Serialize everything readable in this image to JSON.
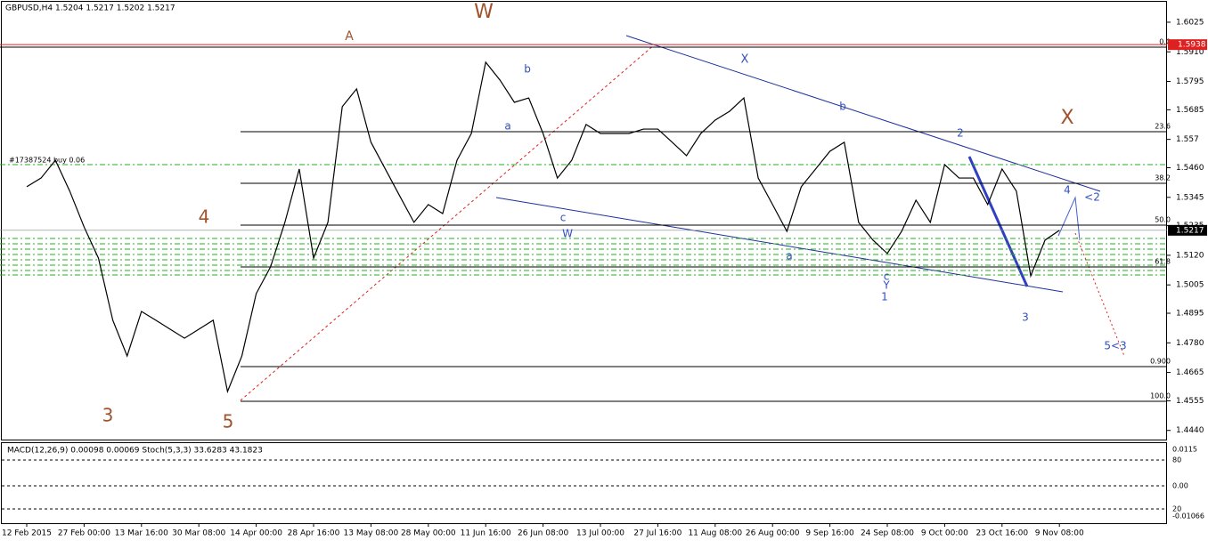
{
  "chart_data": {
    "type": "line",
    "title": "GBPUSD,H4  1.5204 1.5217 1.5202 1.5217",
    "categories": [
      "12 Feb 2015",
      null,
      null,
      null,
      "27 Feb 00:00",
      null,
      null,
      null,
      "13 Mar 16:00",
      null,
      null,
      null,
      "30 Mar 08:00",
      null,
      null,
      null,
      "14 Apr 00:00",
      null,
      null,
      null,
      "28 Apr 16:00",
      null,
      null,
      null,
      "13 May 08:00",
      null,
      null,
      null,
      "28 May 00:00",
      null,
      null,
      null,
      "11 Jun 16:00",
      null,
      null,
      null,
      "26 Jun 08:00",
      null,
      null,
      null,
      "13 Jul 00:00",
      null,
      null,
      null,
      "27 Jul 16:00",
      null,
      null,
      null,
      "11 Aug 08:00",
      null,
      null,
      null,
      "26 Aug 00:00",
      null,
      null,
      null,
      "9 Sep 16:00",
      null,
      null,
      null,
      "24 Sep 08:00",
      null,
      null,
      null,
      "9 Oct 00:00",
      null,
      null,
      null,
      "23 Oct 16:00",
      null,
      null,
      null,
      "9 Nov 08:00"
    ],
    "values": [
      1.5386,
      1.542,
      1.5489,
      1.5369,
      1.523,
      1.5109,
      1.4868,
      1.4729,
      1.4902,
      1.4868,
      1.4833,
      1.4798,
      1.4833,
      1.4868,
      1.4591,
      1.4729,
      1.4971,
      1.5075,
      1.5248,
      1.5455,
      1.5109,
      1.5248,
      1.5697,
      1.5766,
      1.5559,
      1.5455,
      1.5351,
      1.5248,
      1.5317,
      1.5282,
      1.5489,
      1.5593,
      1.587,
      1.58,
      1.5714,
      1.5731,
      1.5593,
      1.542,
      1.5489,
      1.5628,
      1.5593,
      1.5593,
      1.5593,
      1.561,
      1.561,
      1.5559,
      1.5507,
      1.5593,
      1.5645,
      1.5679,
      1.5731,
      1.542,
      1.5317,
      1.5213,
      1.5386,
      1.5455,
      1.5524,
      1.5559,
      1.5248,
      1.5179,
      1.5127,
      1.5213,
      1.5334,
      1.5248,
      1.5472,
      1.542,
      1.542,
      1.5317,
      1.5455,
      1.5369,
      1.504,
      1.5179,
      1.5217
    ],
    "color": "#000000",
    "ylim": [
      1.4401,
      1.6094
    ],
    "yticks": [
      1.6025,
      {
        "value": 1.591,
        "label": "1.5910"
      },
      1.5795,
      1.5685,
      1.557,
      {
        "value": 1.546,
        "label": "1.5460"
      },
      1.5345,
      1.5235,
      {
        "value": 1.512,
        "label": "1.5120"
      },
      1.5005,
      1.4895,
      {
        "value": 1.478,
        "label": "1.4780"
      },
      1.4665,
      1.4555,
      {
        "value": 1.444,
        "label": "1.4440"
      }
    ],
    "current_price": 1.5217,
    "red_line_price": 1.5938,
    "fib_labels": [
      "0.0",
      "23.6",
      "38.2",
      "50.0",
      "61.8",
      "0.900",
      "100.0"
    ],
    "order_label": "#17387524 buy 0.06",
    "annotations": [
      "W",
      "A",
      "4",
      "3",
      "5",
      "X",
      "b",
      "a",
      "c",
      "W",
      "a",
      "b",
      "c",
      "Y",
      "1",
      "2",
      "3",
      "4",
      "<2",
      "5<3",
      "X"
    ],
    "indicator_title": "MACD(12,26,9) 0.00098 0.00069  Stoch(5,3,3) 33.6283 43.1823",
    "indicator_labels": [
      "0.0115",
      "80",
      "0.00",
      "20",
      "-0.01066"
    ]
  }
}
